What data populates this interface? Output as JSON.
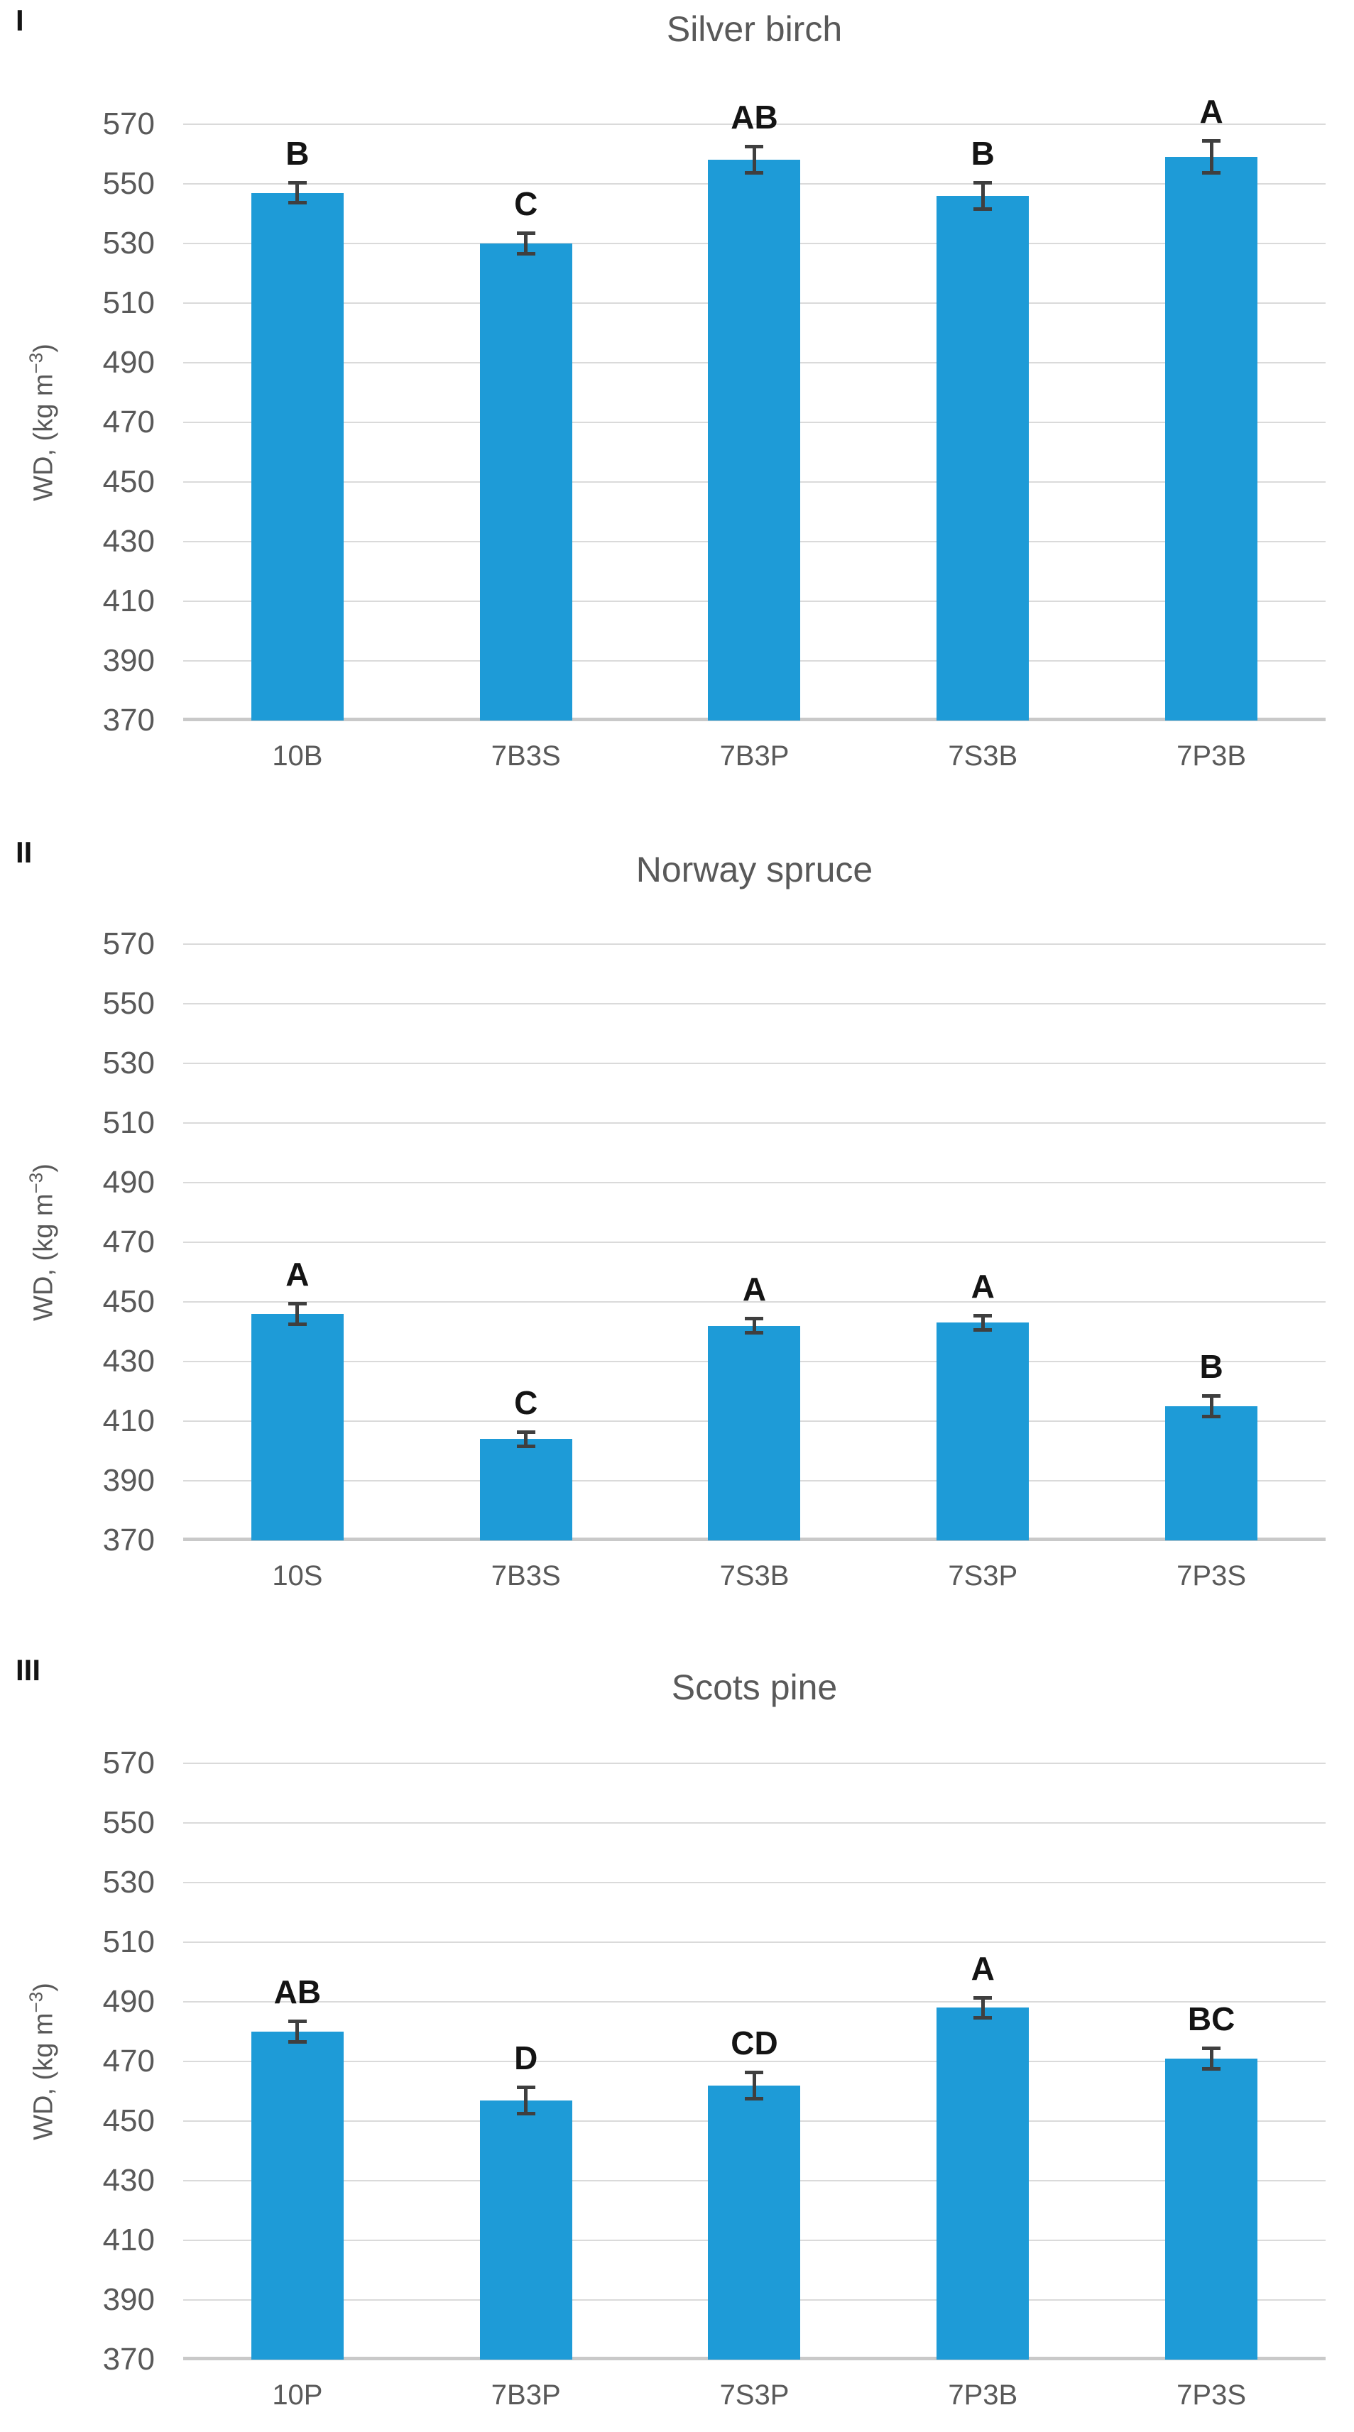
{
  "figure": {
    "ylabel": {
      "prefix": "WD, (kg m",
      "sup": "−3",
      "suffix": ")"
    },
    "colors": {
      "bar": "#1E9BD7",
      "error_bar": "#3F3F3F",
      "gridline": "#DADADA",
      "baseline": "#C9C9C9",
      "axis_text": "#595959",
      "letter_text": "#141414"
    }
  },
  "axis": {
    "ymin": 370,
    "ymax": 570,
    "tick_step": 20,
    "ticks": [
      570,
      550,
      530,
      510,
      490,
      470,
      450,
      430,
      410,
      390,
      370
    ]
  },
  "chart_data": [
    {
      "type": "bar",
      "numeral": "I",
      "title": "Silver birch",
      "ylabel": "WD, (kg m⁻³)",
      "xlabel": "",
      "categories": [
        "10B",
        "7B3S",
        "7B3P",
        "7S3B",
        "7P3B"
      ],
      "values": [
        547,
        530,
        558,
        546,
        559
      ],
      "errors": [
        4,
        4,
        5,
        5,
        6
      ],
      "sig_letters": [
        "B",
        "C",
        "AB",
        "B",
        "A"
      ],
      "ylim": [
        370,
        570
      ],
      "grid": true,
      "legend": "none"
    },
    {
      "type": "bar",
      "numeral": "II",
      "title": "Norway spruce",
      "ylabel": "WD, (kg m⁻³)",
      "xlabel": "",
      "categories": [
        "10S",
        "7B3S",
        "7S3B",
        "7S3P",
        "7P3S"
      ],
      "values": [
        446,
        404,
        442,
        443,
        415
      ],
      "errors": [
        4,
        3,
        3,
        3,
        4
      ],
      "sig_letters": [
        "A",
        "C",
        "A",
        "A",
        "B"
      ],
      "ylim": [
        370,
        570
      ],
      "grid": true,
      "legend": "none"
    },
    {
      "type": "bar",
      "numeral": "III",
      "title": "Scots pine",
      "ylabel": "WD, (kg m⁻³)",
      "xlabel": "",
      "categories": [
        "10P",
        "7B3P",
        "7S3P",
        "7P3B",
        "7P3S"
      ],
      "values": [
        480,
        457,
        462,
        488,
        471
      ],
      "errors": [
        4,
        5,
        5,
        4,
        4
      ],
      "sig_letters": [
        "AB",
        "D",
        "CD",
        "A",
        "BC"
      ],
      "ylim": [
        370,
        570
      ],
      "grid": true,
      "legend": "none"
    }
  ]
}
